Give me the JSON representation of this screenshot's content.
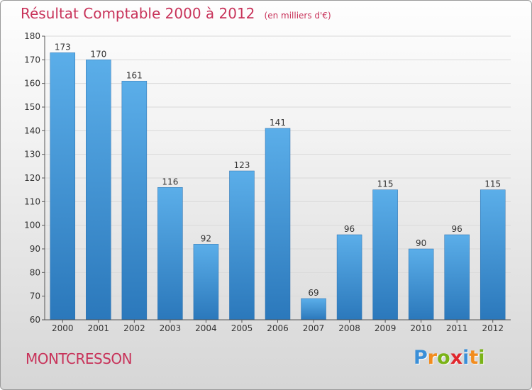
{
  "title": {
    "main": "Résultat Comptable 2000 à 2012",
    "unit": "(en milliers d'€)"
  },
  "town": "MONTCRESSON",
  "logo": {
    "text": "Proxiti",
    "letters": [
      "P",
      "r",
      "o",
      "x",
      "i",
      "t",
      "i"
    ],
    "colors": [
      "#3a8fd8",
      "#f28c1e",
      "#7ab317",
      "#e0272d",
      "#3a8fd8",
      "#f28c1e",
      "#7ab317"
    ]
  },
  "colors": {
    "title": "#c8335a",
    "bar_top": "#5baee9",
    "bar_bottom": "#2b78bb",
    "axis": "#555555",
    "grid": "#d9d9d9",
    "text": "#333333"
  },
  "chart_data": {
    "type": "bar",
    "title": "Résultat Comptable 2000 à 2012",
    "xlabel": "",
    "ylabel": "",
    "categories": [
      "2000",
      "2001",
      "2002",
      "2003",
      "2004",
      "2005",
      "2006",
      "2007",
      "2008",
      "2009",
      "2010",
      "2011",
      "2012"
    ],
    "values": [
      173,
      170,
      161,
      116,
      92,
      123,
      141,
      69,
      96,
      115,
      90,
      96,
      115
    ],
    "ylim": [
      60,
      180
    ],
    "yticks": [
      60,
      70,
      80,
      90,
      100,
      110,
      120,
      130,
      140,
      150,
      160,
      170,
      180
    ],
    "grid": true,
    "data_labels": true
  }
}
